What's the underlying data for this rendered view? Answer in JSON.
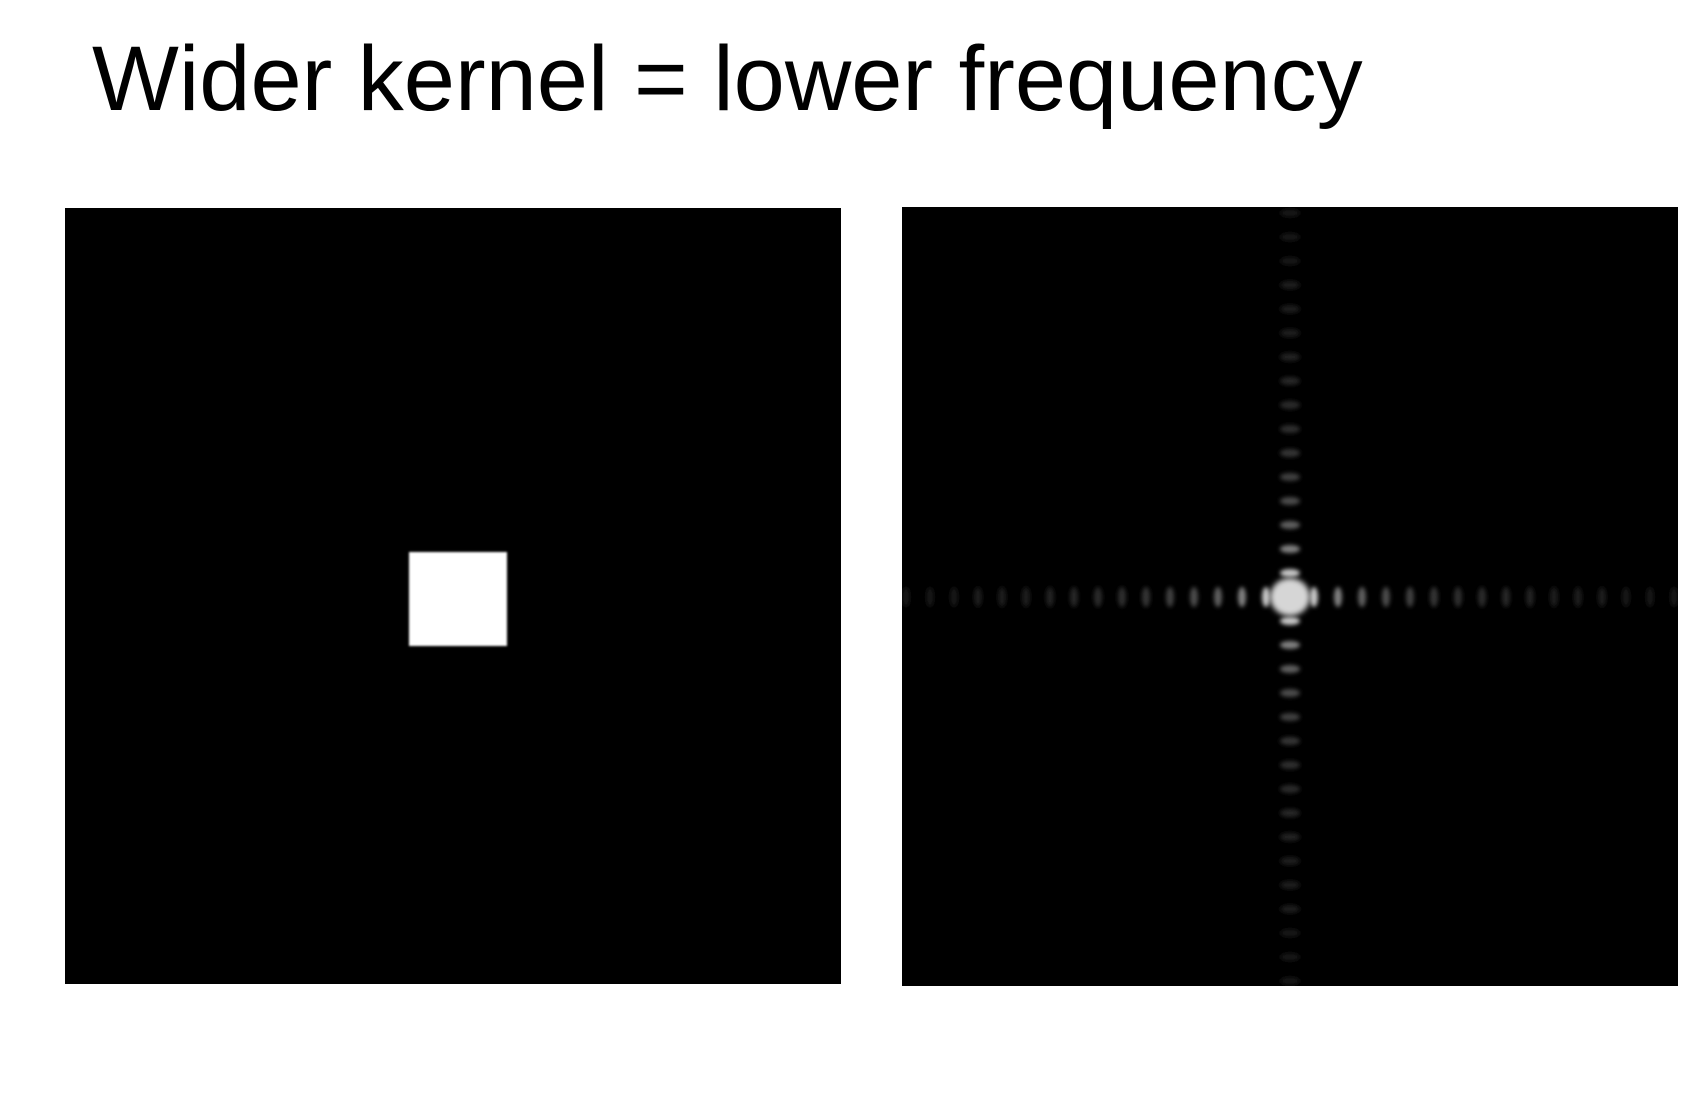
{
  "slide": {
    "title": "Wider kernel = lower frequency"
  },
  "panels": [
    {
      "id": "spatial-kernel",
      "content": "box kernel (white square on black)",
      "background_color": "#000000",
      "foreground_color": "#ffffff"
    },
    {
      "id": "frequency-spectrum",
      "content": "Fourier magnitude of box kernel (sinc pattern along axes)",
      "background_color": "#000000",
      "foreground_color": "#d9d9d9"
    }
  ]
}
